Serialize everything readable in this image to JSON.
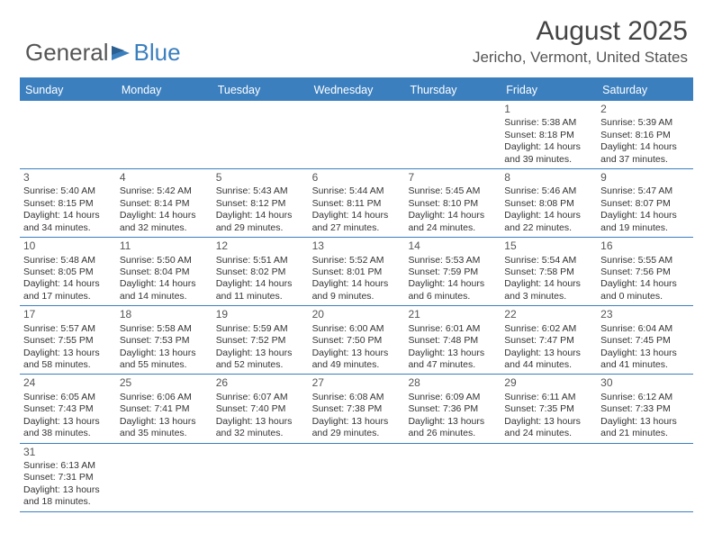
{
  "colors": {
    "primary": "#3b7fbf",
    "text": "#333333",
    "header_text": "#555555",
    "background": "#ffffff"
  },
  "logo": {
    "text1": "General",
    "text2": "Blue"
  },
  "title": "August 2025",
  "location": "Jericho, Vermont, United States",
  "weekdays": [
    "Sunday",
    "Monday",
    "Tuesday",
    "Wednesday",
    "Thursday",
    "Friday",
    "Saturday"
  ],
  "weeks": [
    [
      null,
      null,
      null,
      null,
      null,
      {
        "num": "1",
        "sunrise": "5:38 AM",
        "sunset": "8:18 PM",
        "daylight": "14 hours and 39 minutes."
      },
      {
        "num": "2",
        "sunrise": "5:39 AM",
        "sunset": "8:16 PM",
        "daylight": "14 hours and 37 minutes."
      }
    ],
    [
      {
        "num": "3",
        "sunrise": "5:40 AM",
        "sunset": "8:15 PM",
        "daylight": "14 hours and 34 minutes."
      },
      {
        "num": "4",
        "sunrise": "5:42 AM",
        "sunset": "8:14 PM",
        "daylight": "14 hours and 32 minutes."
      },
      {
        "num": "5",
        "sunrise": "5:43 AM",
        "sunset": "8:12 PM",
        "daylight": "14 hours and 29 minutes."
      },
      {
        "num": "6",
        "sunrise": "5:44 AM",
        "sunset": "8:11 PM",
        "daylight": "14 hours and 27 minutes."
      },
      {
        "num": "7",
        "sunrise": "5:45 AM",
        "sunset": "8:10 PM",
        "daylight": "14 hours and 24 minutes."
      },
      {
        "num": "8",
        "sunrise": "5:46 AM",
        "sunset": "8:08 PM",
        "daylight": "14 hours and 22 minutes."
      },
      {
        "num": "9",
        "sunrise": "5:47 AM",
        "sunset": "8:07 PM",
        "daylight": "14 hours and 19 minutes."
      }
    ],
    [
      {
        "num": "10",
        "sunrise": "5:48 AM",
        "sunset": "8:05 PM",
        "daylight": "14 hours and 17 minutes."
      },
      {
        "num": "11",
        "sunrise": "5:50 AM",
        "sunset": "8:04 PM",
        "daylight": "14 hours and 14 minutes."
      },
      {
        "num": "12",
        "sunrise": "5:51 AM",
        "sunset": "8:02 PM",
        "daylight": "14 hours and 11 minutes."
      },
      {
        "num": "13",
        "sunrise": "5:52 AM",
        "sunset": "8:01 PM",
        "daylight": "14 hours and 9 minutes."
      },
      {
        "num": "14",
        "sunrise": "5:53 AM",
        "sunset": "7:59 PM",
        "daylight": "14 hours and 6 minutes."
      },
      {
        "num": "15",
        "sunrise": "5:54 AM",
        "sunset": "7:58 PM",
        "daylight": "14 hours and 3 minutes."
      },
      {
        "num": "16",
        "sunrise": "5:55 AM",
        "sunset": "7:56 PM",
        "daylight": "14 hours and 0 minutes."
      }
    ],
    [
      {
        "num": "17",
        "sunrise": "5:57 AM",
        "sunset": "7:55 PM",
        "daylight": "13 hours and 58 minutes."
      },
      {
        "num": "18",
        "sunrise": "5:58 AM",
        "sunset": "7:53 PM",
        "daylight": "13 hours and 55 minutes."
      },
      {
        "num": "19",
        "sunrise": "5:59 AM",
        "sunset": "7:52 PM",
        "daylight": "13 hours and 52 minutes."
      },
      {
        "num": "20",
        "sunrise": "6:00 AM",
        "sunset": "7:50 PM",
        "daylight": "13 hours and 49 minutes."
      },
      {
        "num": "21",
        "sunrise": "6:01 AM",
        "sunset": "7:48 PM",
        "daylight": "13 hours and 47 minutes."
      },
      {
        "num": "22",
        "sunrise": "6:02 AM",
        "sunset": "7:47 PM",
        "daylight": "13 hours and 44 minutes."
      },
      {
        "num": "23",
        "sunrise": "6:04 AM",
        "sunset": "7:45 PM",
        "daylight": "13 hours and 41 minutes."
      }
    ],
    [
      {
        "num": "24",
        "sunrise": "6:05 AM",
        "sunset": "7:43 PM",
        "daylight": "13 hours and 38 minutes."
      },
      {
        "num": "25",
        "sunrise": "6:06 AM",
        "sunset": "7:41 PM",
        "daylight": "13 hours and 35 minutes."
      },
      {
        "num": "26",
        "sunrise": "6:07 AM",
        "sunset": "7:40 PM",
        "daylight": "13 hours and 32 minutes."
      },
      {
        "num": "27",
        "sunrise": "6:08 AM",
        "sunset": "7:38 PM",
        "daylight": "13 hours and 29 minutes."
      },
      {
        "num": "28",
        "sunrise": "6:09 AM",
        "sunset": "7:36 PM",
        "daylight": "13 hours and 26 minutes."
      },
      {
        "num": "29",
        "sunrise": "6:11 AM",
        "sunset": "7:35 PM",
        "daylight": "13 hours and 24 minutes."
      },
      {
        "num": "30",
        "sunrise": "6:12 AM",
        "sunset": "7:33 PM",
        "daylight": "13 hours and 21 minutes."
      }
    ],
    [
      {
        "num": "31",
        "sunrise": "6:13 AM",
        "sunset": "7:31 PM",
        "daylight": "13 hours and 18 minutes."
      },
      null,
      null,
      null,
      null,
      null,
      null
    ]
  ]
}
